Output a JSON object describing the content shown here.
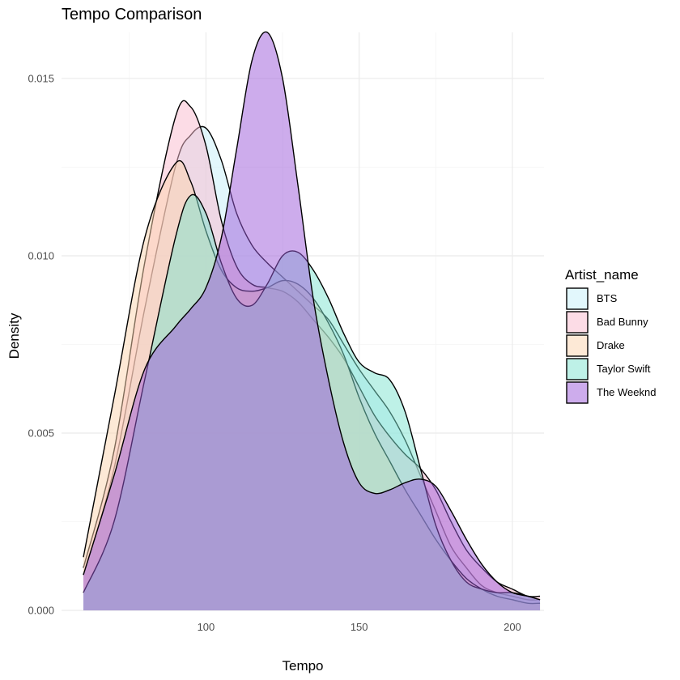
{
  "chart_data": {
    "type": "area",
    "title": "Tempo Comparison",
    "xlabel": "Tempo",
    "ylabel": "Density",
    "xlim": [
      60,
      210
    ],
    "ylim": [
      0,
      0.0163
    ],
    "x_ticks": [
      100,
      150,
      200
    ],
    "y_ticks": [
      0.0,
      0.005,
      0.01,
      0.015
    ],
    "y_tick_labels": [
      "0.000",
      "0.005",
      "0.010",
      "0.015"
    ],
    "grid": true,
    "legend": {
      "title": "Artist_name",
      "position": "right"
    },
    "series": [
      {
        "name": "BTS",
        "color": "#c6f0fa",
        "x": [
          60,
          70,
          80,
          90,
          95,
          100,
          105,
          110,
          115,
          120,
          125,
          130,
          135,
          140,
          145,
          150,
          155,
          160,
          165,
          170,
          175,
          180,
          185,
          190,
          195,
          200,
          205,
          209
        ],
        "y": [
          0.001,
          0.004,
          0.0085,
          0.0125,
          0.0134,
          0.0136,
          0.0127,
          0.0112,
          0.0103,
          0.0098,
          0.0094,
          0.009,
          0.0086,
          0.0082,
          0.0075,
          0.0068,
          0.0062,
          0.0056,
          0.0048,
          0.0038,
          0.0028,
          0.0018,
          0.0012,
          0.0007,
          0.0005,
          0.0004,
          0.0003,
          0.0003
        ]
      },
      {
        "name": "Bad Bunny",
        "color": "#f9b9cd",
        "x": [
          60,
          70,
          80,
          90,
          95,
          100,
          105,
          110,
          115,
          120,
          125,
          130,
          135,
          140,
          145,
          150,
          155,
          160,
          165,
          170,
          175,
          180,
          185,
          190,
          195,
          200,
          205,
          209
        ],
        "y": [
          0.0012,
          0.0045,
          0.0098,
          0.0139,
          0.0142,
          0.0131,
          0.011,
          0.0097,
          0.0092,
          0.0091,
          0.009,
          0.0087,
          0.0082,
          0.0077,
          0.0071,
          0.0063,
          0.0055,
          0.0049,
          0.0044,
          0.004,
          0.0034,
          0.0025,
          0.0017,
          0.0012,
          0.0008,
          0.0006,
          0.0004,
          0.0004
        ]
      },
      {
        "name": "Drake",
        "color": "#fbd3ad",
        "x": [
          60,
          70,
          80,
          90,
          95,
          100,
          105,
          110,
          115,
          120,
          125,
          130,
          135,
          140,
          145,
          150,
          155,
          160,
          165,
          170,
          175,
          180,
          185,
          190,
          195,
          200,
          205,
          209
        ],
        "y": [
          0.0015,
          0.006,
          0.0105,
          0.0126,
          0.0121,
          0.0107,
          0.0096,
          0.0091,
          0.009,
          0.0091,
          0.0093,
          0.0092,
          0.0088,
          0.0081,
          0.0072,
          0.006,
          0.005,
          0.0042,
          0.0034,
          0.0027,
          0.002,
          0.0014,
          0.0009,
          0.0006,
          0.0004,
          0.0003,
          0.0002,
          0.0002
        ]
      },
      {
        "name": "Taylor Swift",
        "color": "#7ee3d0",
        "x": [
          60,
          70,
          80,
          90,
          95,
          100,
          105,
          110,
          115,
          120,
          125,
          130,
          135,
          140,
          145,
          150,
          155,
          160,
          165,
          170,
          175,
          180,
          185,
          190,
          195,
          200,
          205,
          209
        ],
        "y": [
          0.0005,
          0.0025,
          0.0065,
          0.0105,
          0.0117,
          0.0112,
          0.0098,
          0.0088,
          0.0086,
          0.0092,
          0.01,
          0.0101,
          0.0096,
          0.0088,
          0.0078,
          0.007,
          0.0067,
          0.0065,
          0.0056,
          0.004,
          0.0024,
          0.0014,
          0.0008,
          0.0006,
          0.0005,
          0.0005,
          0.0004,
          0.0003
        ]
      },
      {
        "name": "The Weeknd",
        "color": "#9b59d9",
        "x": [
          60,
          70,
          80,
          90,
          95,
          100,
          105,
          110,
          115,
          120,
          125,
          130,
          135,
          140,
          145,
          150,
          155,
          160,
          165,
          170,
          175,
          180,
          185,
          190,
          195,
          200,
          205,
          209
        ],
        "y": [
          0.001,
          0.0038,
          0.0068,
          0.008,
          0.0085,
          0.0091,
          0.0105,
          0.013,
          0.0155,
          0.0163,
          0.015,
          0.012,
          0.0088,
          0.0065,
          0.0047,
          0.0036,
          0.0033,
          0.0034,
          0.0036,
          0.0037,
          0.0035,
          0.0028,
          0.002,
          0.0013,
          0.0008,
          0.0005,
          0.0004,
          0.0003
        ]
      }
    ]
  }
}
